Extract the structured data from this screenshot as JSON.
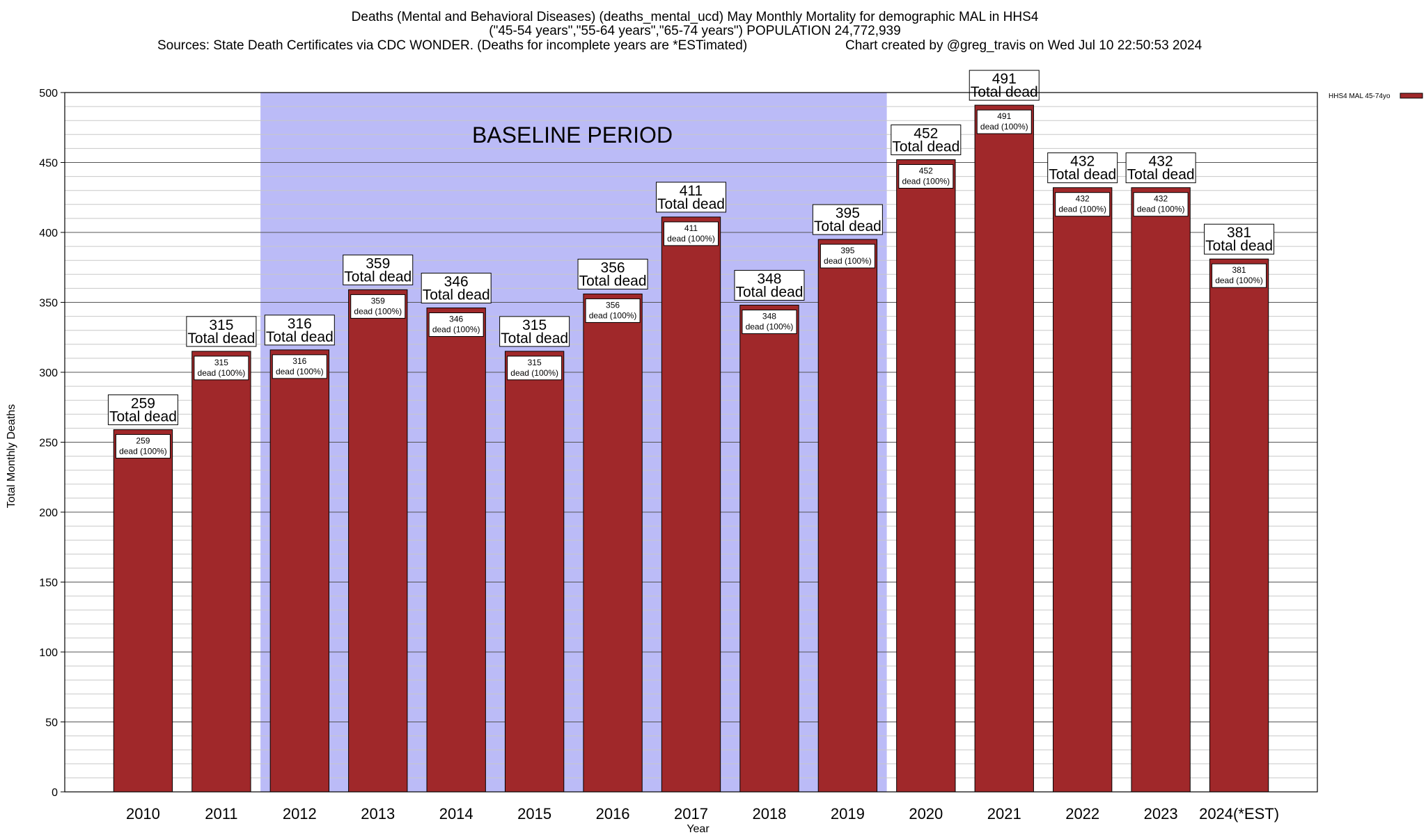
{
  "title": {
    "line1": "Deaths (Mental and Behavioral Diseases) (deaths_mental_ucd) May Monthly Mortality for demographic MAL in HHS4",
    "line2": "(\"45-54 years\",\"55-64 years\",\"65-74 years\") POPULATION 24,772,939",
    "line3_left": "Sources: State Death Certificates via CDC WONDER. (Deaths for incomplete years are *ESTimated)",
    "line3_right": "Chart created by @greg_travis on Wed Jul 10 22:50:53 2024"
  },
  "baseline_label": "BASELINE PERIOD",
  "annotation": {
    "total_label": "Total dead",
    "dead_label": "dead (100%)"
  },
  "chart_data": {
    "type": "bar",
    "categories": [
      "2010",
      "2011",
      "2012",
      "2013",
      "2014",
      "2015",
      "2016",
      "2017",
      "2018",
      "2019",
      "2020",
      "2021",
      "2022",
      "2023",
      "2024(*EST)"
    ],
    "series": [
      {
        "name": "HHS4 MAL 45-74yo",
        "color": "#a0282a",
        "values": [
          259,
          315,
          316,
          359,
          346,
          315,
          356,
          411,
          348,
          395,
          452,
          491,
          432,
          432,
          381
        ]
      }
    ],
    "xlabel": "Year",
    "ylabel": "Total Monthly Deaths",
    "ylim": [
      0,
      500
    ],
    "yticks": [
      0,
      50,
      100,
      150,
      200,
      250,
      300,
      350,
      400,
      450,
      500
    ],
    "baseline_period": [
      "2012",
      "2019"
    ],
    "baseline_color": "#bbbbf7",
    "grid": true,
    "legend_position": "top-right"
  }
}
